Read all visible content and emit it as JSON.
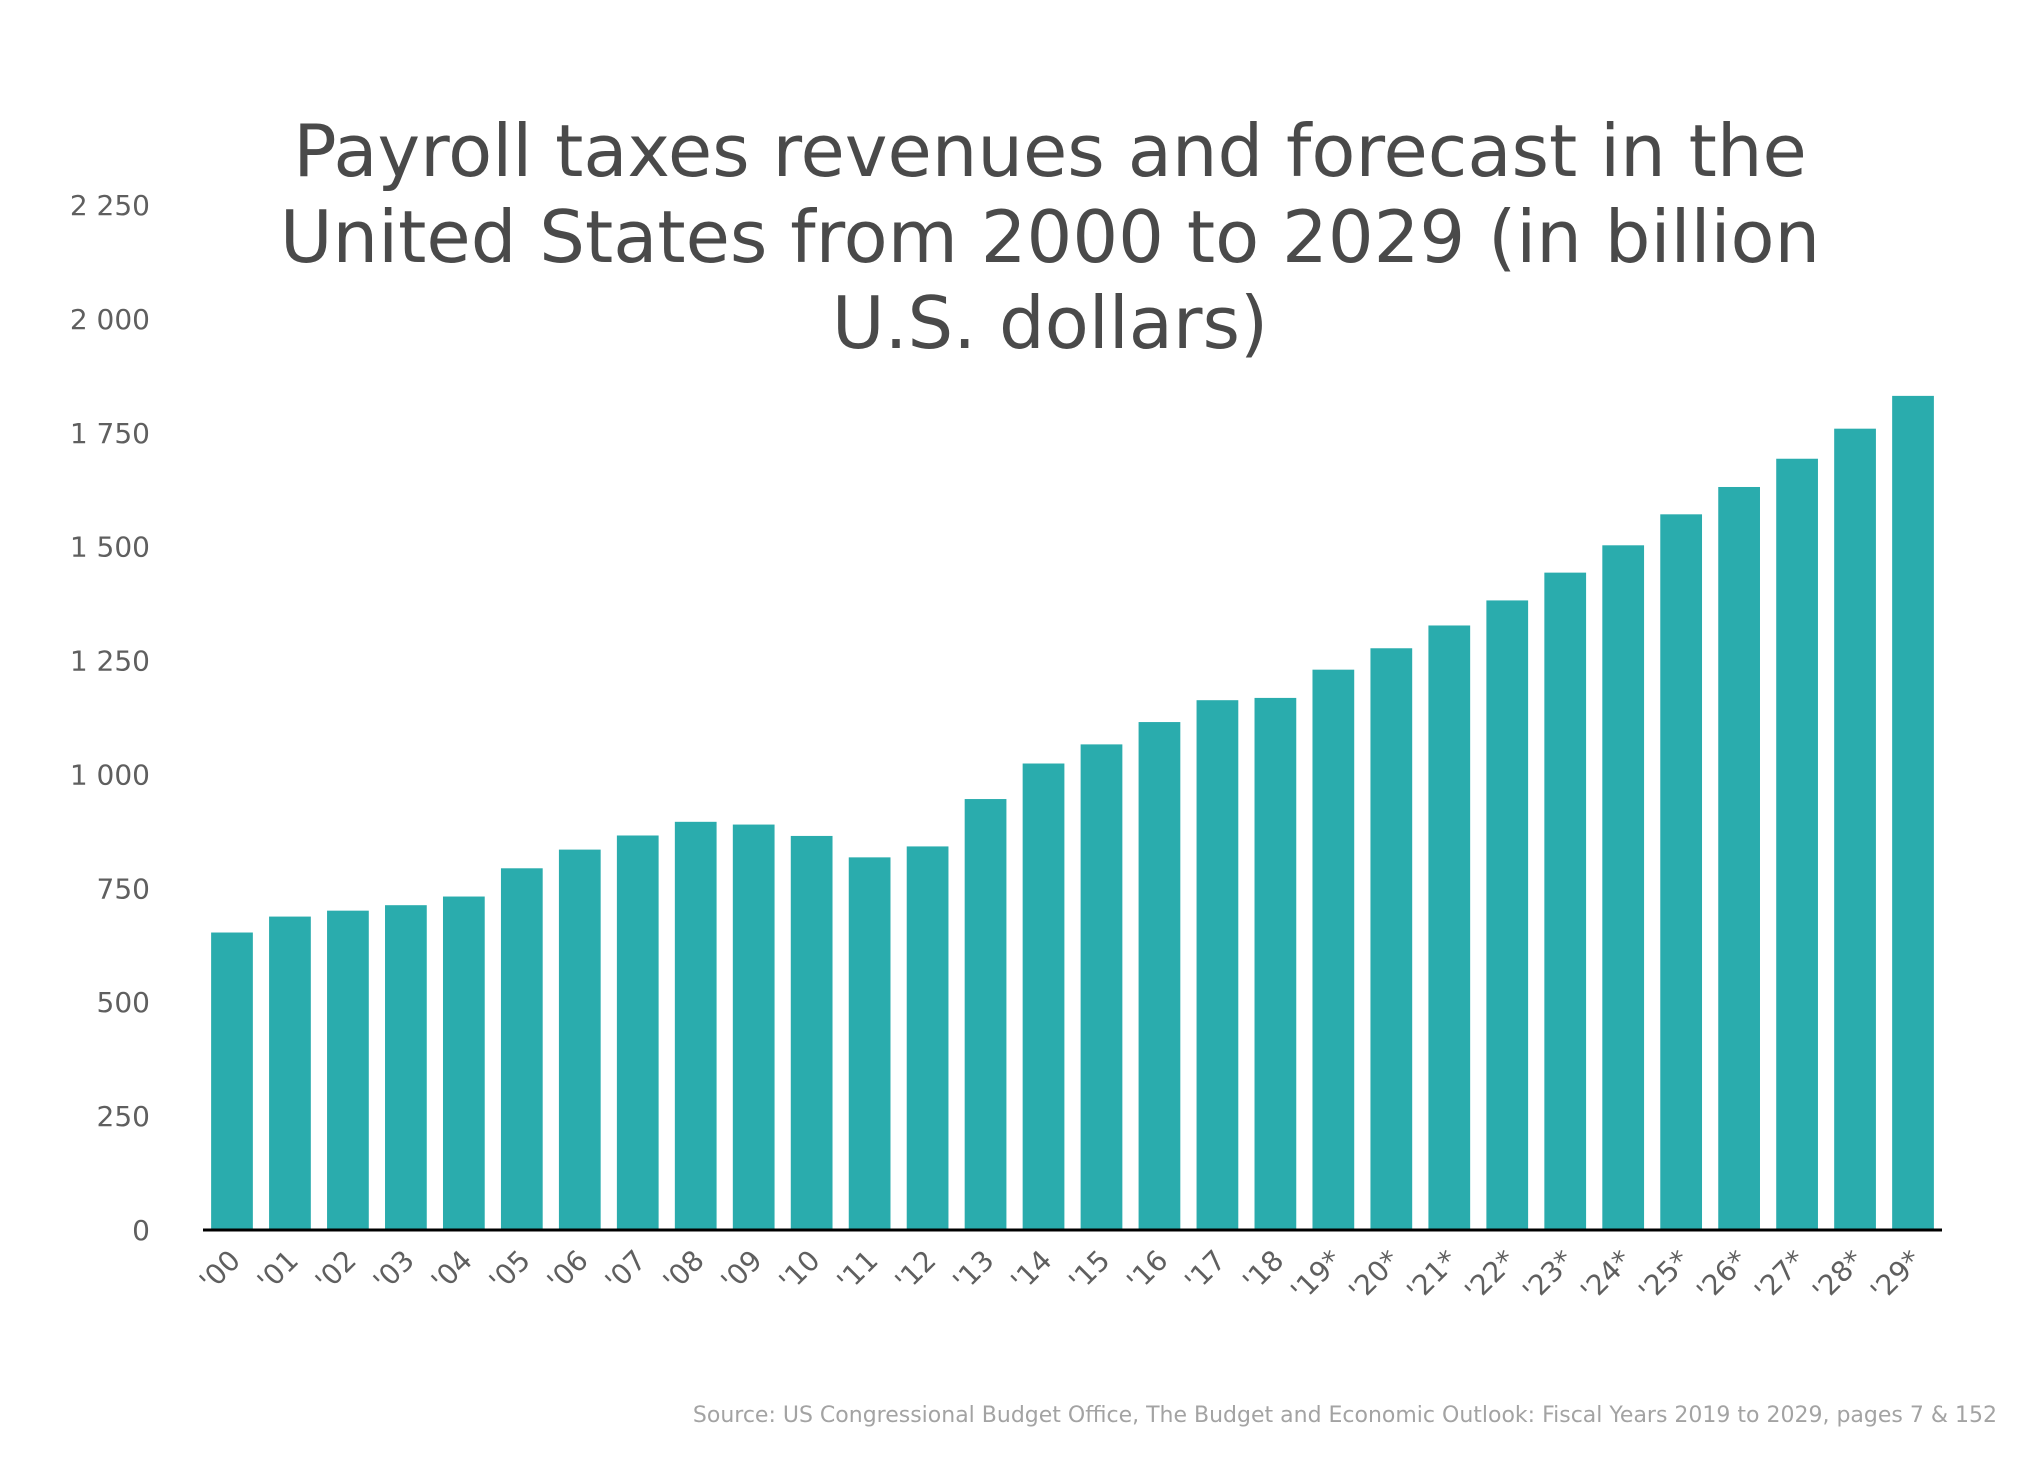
{
  "chart_data": {
    "type": "bar",
    "title": "Payroll taxes revenues and forecast in the United States from 2000 to 2029 (in billion U.S. dollars)",
    "categories": [
      "'00",
      "'01",
      "'02",
      "'03",
      "'04",
      "'05",
      "'06",
      "'07",
      "'08",
      "'09",
      "'10",
      "'11",
      "'12",
      "'13",
      "'14",
      "'15",
      "'16",
      "'17",
      "'18",
      "'19*",
      "'20*",
      "'21*",
      "'22*",
      "'23*",
      "'24*",
      "'25*",
      "'26*",
      "'27*",
      "'28*",
      "'29*"
    ],
    "values": [
      653,
      688,
      701,
      713,
      732,
      794,
      835,
      866,
      896,
      890,
      865,
      818,
      842,
      946,
      1024,
      1066,
      1115,
      1163,
      1168,
      1230,
      1277,
      1327,
      1382,
      1443,
      1503,
      1571,
      1631,
      1693,
      1759,
      1831
    ],
    "yticks": [
      "0",
      "250",
      "500",
      "750",
      "1 000",
      "1 250",
      "1 500",
      "1 750",
      "2 000",
      "2 250"
    ],
    "ylim": [
      0,
      2250
    ],
    "xlabel": "",
    "ylabel": "",
    "bar_color": "#2aacad",
    "grid": false,
    "legend": "none"
  },
  "source": "Source: US Congressional Budget Office, The Budget and Economic Outlook: Fiscal Years 2019 to 2029, pages 7 & 152",
  "colors": {
    "title": "#4a4a4a",
    "axis": "#000000",
    "ticks": "#5f5f5f",
    "source": "#a3a3a3"
  }
}
